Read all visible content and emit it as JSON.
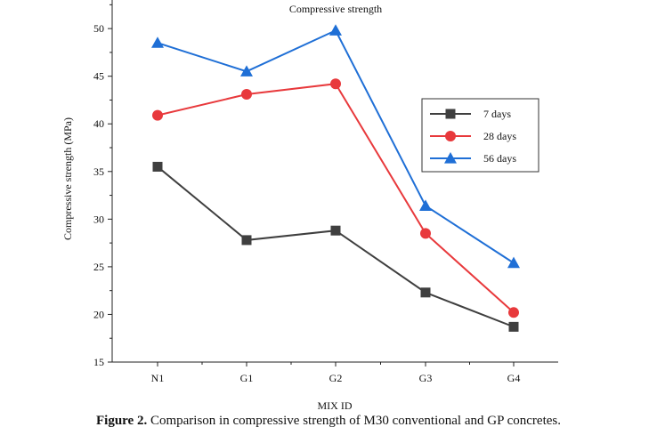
{
  "caption": {
    "label": "Figure 2.",
    "text": " Comparison in compressive strength of M30 conventional and GP concretes."
  },
  "chart_data": {
    "type": "line",
    "title": "Compressive strength",
    "xlabel": "MIX ID",
    "ylabel": "Compressive strength (MPa)",
    "categories": [
      "N1",
      "G1",
      "G2",
      "G3",
      "G4"
    ],
    "ylim": [
      15,
      53
    ],
    "yticks": [
      15,
      20,
      25,
      30,
      35,
      40,
      45,
      50
    ],
    "grid": false,
    "legend_position": "right",
    "series": [
      {
        "name": "7 days",
        "marker": "square",
        "color": "#3f3f3f",
        "values": [
          35.5,
          27.8,
          28.8,
          22.3,
          18.7
        ]
      },
      {
        "name": "28 days",
        "marker": "circle",
        "color": "#e8393c",
        "values": [
          40.9,
          43.1,
          44.2,
          28.5,
          20.2
        ]
      },
      {
        "name": "56 days",
        "marker": "triangle",
        "color": "#1f6fd6",
        "values": [
          48.5,
          45.5,
          49.8,
          31.4,
          25.4
        ]
      }
    ]
  }
}
